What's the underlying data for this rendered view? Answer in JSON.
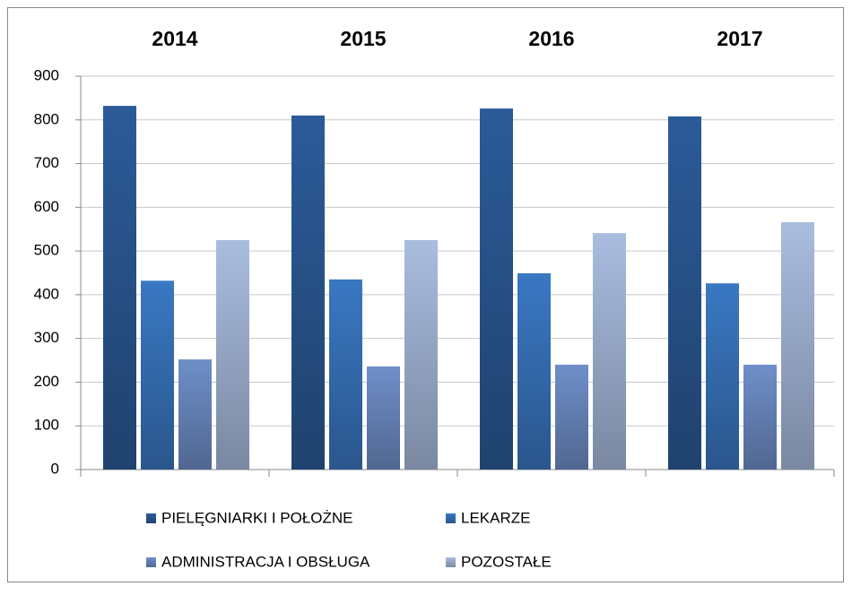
{
  "chart_data": {
    "type": "bar",
    "categories": [
      "2014",
      "2015",
      "2016",
      "2017"
    ],
    "series": [
      {
        "name": "PIELĘGNIARKI I POŁOŻNE",
        "color": "#2c5b99",
        "values": [
          832,
          810,
          826,
          808
        ]
      },
      {
        "name": "LEKARZE",
        "color": "#3a78c3",
        "values": [
          432,
          435,
          449,
          426
        ]
      },
      {
        "name": "ADMINISTRACJA I OBSŁUGA",
        "color": "#6f8fc9",
        "values": [
          252,
          236,
          240,
          240
        ]
      },
      {
        "name": "POZOSTAŁE",
        "color": "#a9bde0",
        "values": [
          525,
          525,
          541,
          566
        ]
      }
    ],
    "ylim": [
      0,
      900
    ],
    "yticks": [
      0,
      100,
      200,
      300,
      400,
      500,
      600,
      700,
      800,
      900
    ],
    "grid": true
  }
}
